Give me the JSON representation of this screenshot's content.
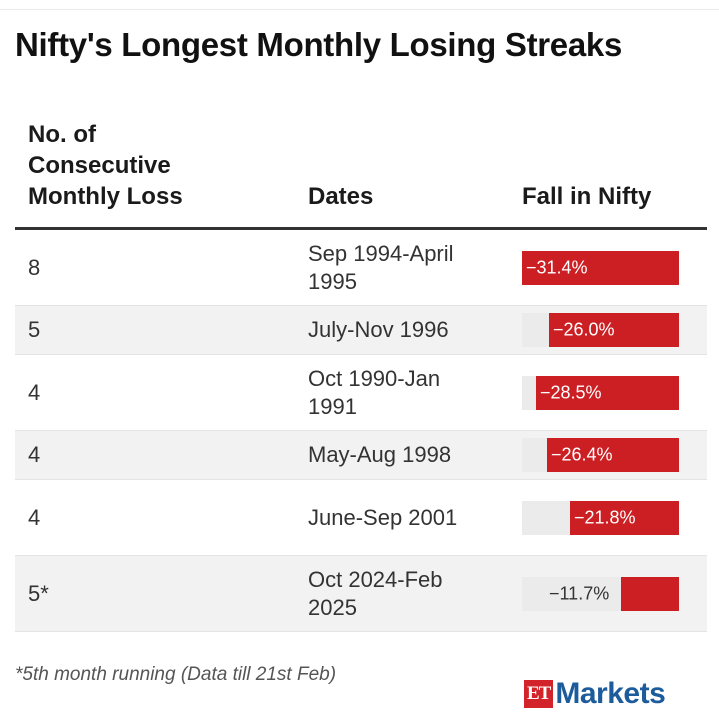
{
  "title": "Nifty's Longest Monthly Losing Streaks",
  "headers": {
    "count_lines": [
      "No. of",
      "Consecutive",
      "Monthly Loss"
    ],
    "dates": "Dates",
    "fall": "Fall in Nifty"
  },
  "footnote": "*5th month running (Data till 21st Feb)",
  "logo": {
    "et": "ET",
    "markets": "Markets"
  },
  "colors": {
    "bar": "#cc1f24",
    "track": "#ebebeb",
    "alt_row": "#f2f2f2"
  },
  "chart_data": {
    "type": "table",
    "columns": [
      "No. of Consecutive Monthly Loss",
      "Dates",
      "Fall in Nifty"
    ],
    "rows": [
      {
        "count": "8",
        "dates": "Sep 1994-April 1995",
        "fall": -31.4,
        "fall_label": "−31.4%"
      },
      {
        "count": "5",
        "dates": "July-Nov 1996",
        "fall": -26.0,
        "fall_label": "−26.0%"
      },
      {
        "count": "4",
        "dates": "Oct 1990-Jan 1991",
        "fall": -28.5,
        "fall_label": "−28.5%"
      },
      {
        "count": "4",
        "dates": "May-Aug 1998",
        "fall": -26.4,
        "fall_label": "−26.4%"
      },
      {
        "count": "4",
        "dates": "June-Sep 2001",
        "fall": -21.8,
        "fall_label": "−21.8%"
      },
      {
        "count": "5*",
        "dates": "Oct 2024-Feb 2025",
        "fall": -11.7,
        "fall_label": "−11.7%"
      }
    ],
    "bar_max": 31.4
  }
}
